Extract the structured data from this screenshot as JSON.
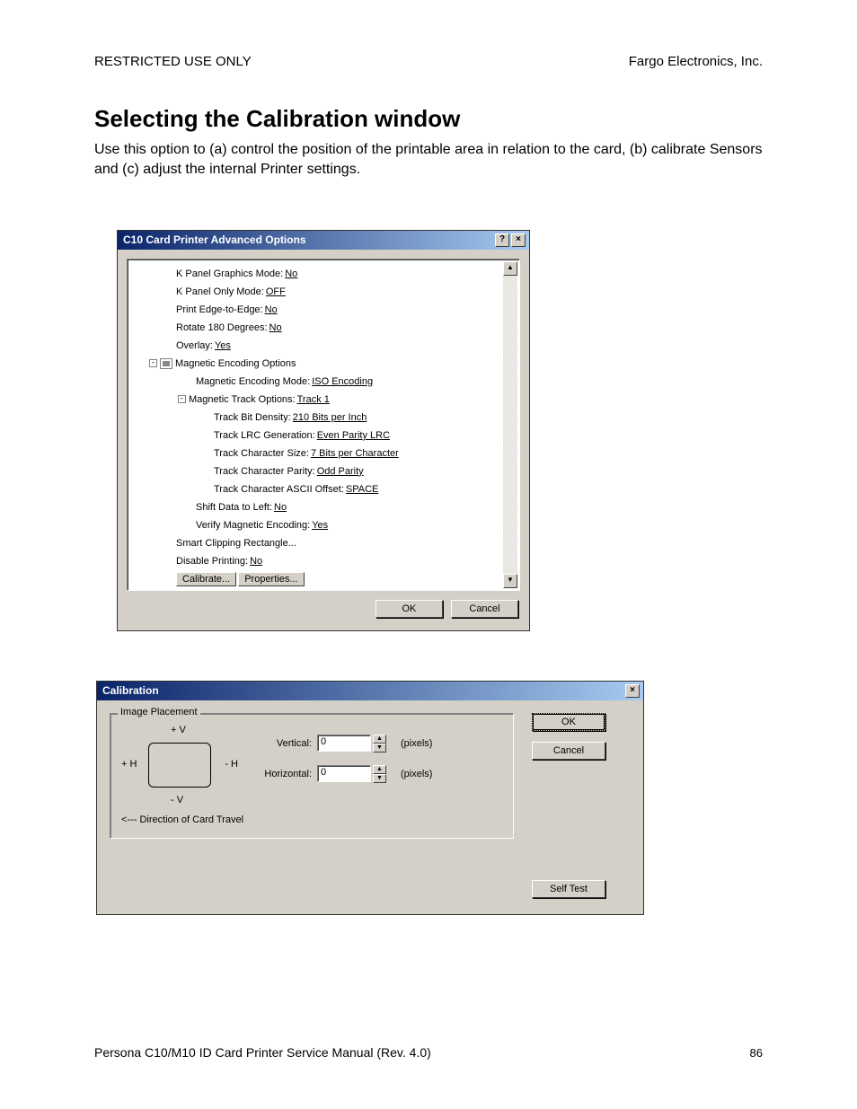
{
  "header": {
    "left": "RESTRICTED USE ONLY",
    "right": "Fargo Electronics, Inc."
  },
  "title": "Selecting the Calibration window",
  "intro": "Use this option to (a) control the position of the printable area in relation to the card, (b) calibrate Sensors and (c) adjust the internal Printer settings.",
  "dlg1": {
    "title": "C10 Card Printer Advanced Options",
    "items": [
      {
        "indent": 50,
        "label": "K Panel Graphics Mode: ",
        "value": "No"
      },
      {
        "indent": 50,
        "label": "K Panel Only Mode: ",
        "value": "OFF"
      },
      {
        "indent": 50,
        "label": "Print Edge-to-Edge: ",
        "value": "No"
      },
      {
        "indent": 50,
        "label": "Rotate 180 Degrees: ",
        "value": "No"
      },
      {
        "indent": 50,
        "label": "Overlay: ",
        "value": "Yes"
      },
      {
        "indent": 20,
        "expander": "-",
        "icon": true,
        "label": "Magnetic Encoding Options",
        "value": ""
      },
      {
        "indent": 72,
        "label": "Magnetic Encoding Mode: ",
        "value": "ISO Encoding"
      },
      {
        "indent": 52,
        "expander": "-",
        "label": "Magnetic Track Options: ",
        "value": "Track 1"
      },
      {
        "indent": 92,
        "label": "Track Bit Density: ",
        "value": "210 Bits per Inch"
      },
      {
        "indent": 92,
        "label": "Track LRC Generation: ",
        "value": "Even Parity LRC"
      },
      {
        "indent": 92,
        "label": "Track Character Size: ",
        "value": "7 Bits per Character"
      },
      {
        "indent": 92,
        "label": "Track Character Parity: ",
        "value": "Odd Parity"
      },
      {
        "indent": 92,
        "label": "Track Character ASCII Offset: ",
        "value": "SPACE"
      },
      {
        "indent": 72,
        "label": "Shift Data to Left: ",
        "value": "No"
      },
      {
        "indent": 72,
        "label": "Verify Magnetic Encoding: ",
        "value": "Yes"
      },
      {
        "indent": 50,
        "label": "Smart Clipping Rectangle...",
        "value": ""
      },
      {
        "indent": 50,
        "label": "Disable Printing: ",
        "value": "No"
      }
    ],
    "calibrate_btn": "Calibrate...",
    "properties_btn": "Properties...",
    "ok": "OK",
    "cancel": "Cancel"
  },
  "dlg2": {
    "title": "Calibration",
    "group": "Image Placement",
    "diagram": {
      "pv": "+ V",
      "mv": "- V",
      "ph": "+ H",
      "mh": "- H"
    },
    "vertical_label": "Vertical:",
    "vertical_value": "0",
    "horizontal_label": "Horizontal:",
    "horizontal_value": "0",
    "unit": "(pixels)",
    "travel": "<--- Direction of Card Travel",
    "ok": "OK",
    "cancel": "Cancel",
    "selftest": "Self Test"
  },
  "footer": {
    "left": "Persona C10/M10 ID Card Printer Service Manual (Rev. 4.0)",
    "page": "86"
  }
}
